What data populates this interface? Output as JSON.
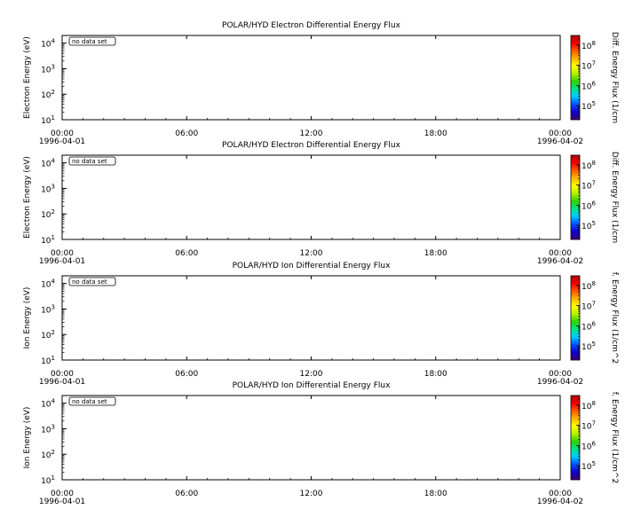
{
  "chart_data": [
    {
      "type": "heatmap",
      "title": "POLAR/HYD  Electron Differential Energy Flux",
      "ylabel": "Electron Energy (eV)",
      "colorbar_label": "Diff. Energy Flux (1/cm",
      "annotation": "no data set",
      "x_ticks": [
        "00:00",
        "06:00",
        "12:00",
        "18:00",
        "00:00"
      ],
      "x_dates": [
        "1996-04-01",
        "1996-04-02"
      ],
      "y_ticks": [
        {
          "base": "10",
          "exp": "1"
        },
        {
          "base": "10",
          "exp": "2"
        },
        {
          "base": "10",
          "exp": "3"
        },
        {
          "base": "10",
          "exp": "4"
        }
      ],
      "ylim": [
        10,
        20000
      ],
      "yscale": "log",
      "cb_ticks": [
        {
          "base": "10",
          "exp": "5"
        },
        {
          "base": "10",
          "exp": "6"
        },
        {
          "base": "10",
          "exp": "7"
        },
        {
          "base": "10",
          "exp": "8"
        }
      ],
      "cblim": [
        20000,
        300000000
      ],
      "series": []
    },
    {
      "type": "heatmap",
      "title": "POLAR/HYD  Electron Differential Energy Flux",
      "ylabel": "Electron Energy (eV)",
      "colorbar_label": "Diff. Energy Flux (1/cm",
      "annotation": "no data set",
      "x_ticks": [
        "00:00",
        "06:00",
        "12:00",
        "18:00",
        "00:00"
      ],
      "x_dates": [
        "1996-04-01",
        "1996-04-02"
      ],
      "y_ticks": [
        {
          "base": "10",
          "exp": "1"
        },
        {
          "base": "10",
          "exp": "2"
        },
        {
          "base": "10",
          "exp": "3"
        },
        {
          "base": "10",
          "exp": "4"
        }
      ],
      "ylim": [
        10,
        20000
      ],
      "yscale": "log",
      "cb_ticks": [
        {
          "base": "10",
          "exp": "5"
        },
        {
          "base": "10",
          "exp": "6"
        },
        {
          "base": "10",
          "exp": "7"
        },
        {
          "base": "10",
          "exp": "8"
        }
      ],
      "cblim": [
        20000,
        300000000
      ],
      "series": []
    },
    {
      "type": "heatmap",
      "title": "POLAR/HYD  Ion Differential Energy Flux",
      "ylabel": "Ion Energy (eV)",
      "colorbar_label": "f. Energy Flux (1/cm^2",
      "annotation": "no data set",
      "x_ticks": [
        "00:00",
        "06:00",
        "12:00",
        "18:00",
        "00:00"
      ],
      "x_dates": [
        "1996-04-01",
        "1996-04-02"
      ],
      "y_ticks": [
        {
          "base": "10",
          "exp": "1"
        },
        {
          "base": "10",
          "exp": "2"
        },
        {
          "base": "10",
          "exp": "3"
        },
        {
          "base": "10",
          "exp": "4"
        }
      ],
      "ylim": [
        10,
        20000
      ],
      "yscale": "log",
      "cb_ticks": [
        {
          "base": "10",
          "exp": "5"
        },
        {
          "base": "10",
          "exp": "6"
        },
        {
          "base": "10",
          "exp": "7"
        },
        {
          "base": "10",
          "exp": "8"
        }
      ],
      "cblim": [
        20000,
        300000000
      ],
      "series": []
    },
    {
      "type": "heatmap",
      "title": "POLAR/HYD  Ion Differential Energy Flux",
      "ylabel": "Ion Energy (eV)",
      "colorbar_label": "f. Energy Flux (1/cm^2",
      "annotation": "no data set",
      "x_ticks": [
        "00:00",
        "06:00",
        "12:00",
        "18:00",
        "00:00"
      ],
      "x_dates": [
        "1996-04-01",
        "1996-04-02"
      ],
      "y_ticks": [
        {
          "base": "10",
          "exp": "1"
        },
        {
          "base": "10",
          "exp": "2"
        },
        {
          "base": "10",
          "exp": "3"
        },
        {
          "base": "10",
          "exp": "4"
        }
      ],
      "ylim": [
        10,
        20000
      ],
      "yscale": "log",
      "cb_ticks": [
        {
          "base": "10",
          "exp": "5"
        },
        {
          "base": "10",
          "exp": "6"
        },
        {
          "base": "10",
          "exp": "7"
        },
        {
          "base": "10",
          "exp": "8"
        }
      ],
      "cblim": [
        20000,
        300000000
      ],
      "series": []
    }
  ],
  "colormap": [
    "#3a006e",
    "#1200c8",
    "#0050ff",
    "#00c8ff",
    "#00e68c",
    "#32d200",
    "#b4f000",
    "#ffff00",
    "#ffb400",
    "#ff5a00",
    "#f00000",
    "#b40000"
  ]
}
